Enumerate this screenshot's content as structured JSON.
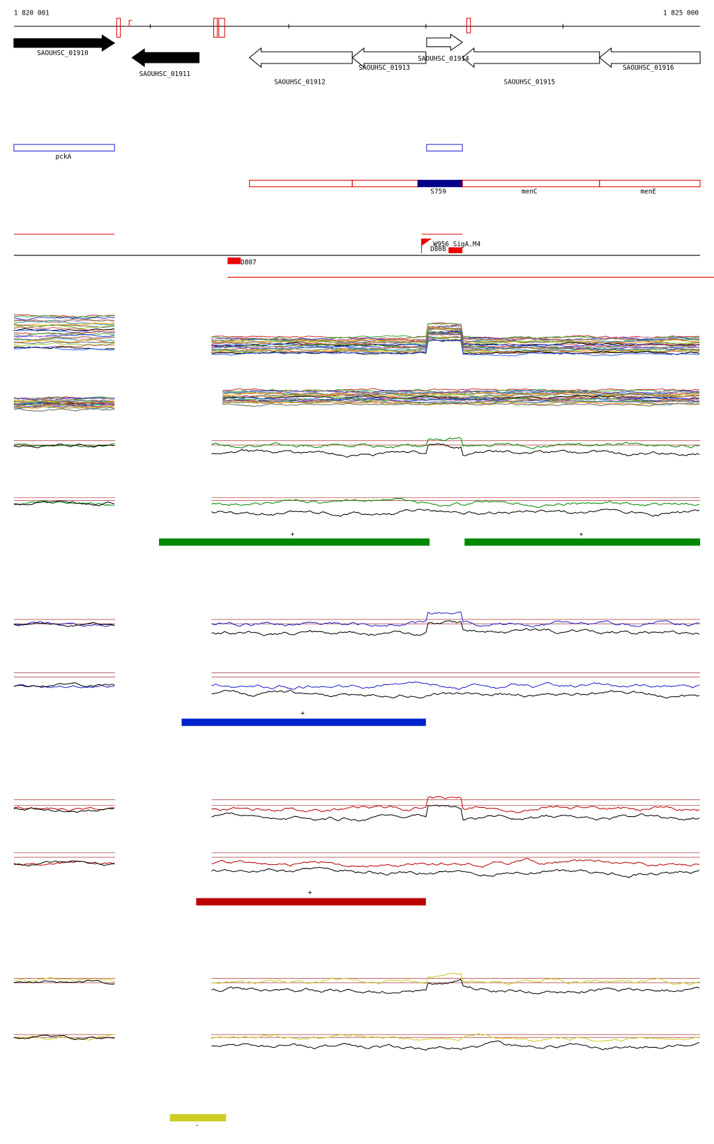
{
  "ruler": {
    "start": "1 820 001",
    "end": "1 825 000"
  },
  "genes": [
    "SAOUHSC_01910",
    "SAOUHSC_01911",
    "SAOUHSC_01912",
    "SAOUHSC_01913",
    "SAOUHSC_01914",
    "SAOUHSC_01915",
    "SAOUHSC_01916"
  ],
  "operons": [
    "pckA",
    "S759",
    "menC",
    "menE"
  ],
  "features": [
    "W956_SigA.M4",
    "D808",
    "D807"
  ],
  "strands": [
    "+",
    "+",
    "+",
    "+",
    "-"
  ]
}
